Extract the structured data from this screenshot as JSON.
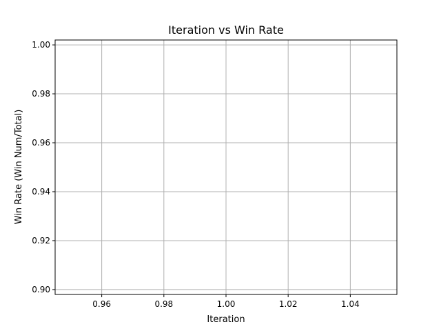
{
  "chart_data": {
    "type": "line",
    "title": "Iteration vs Win Rate",
    "xlabel": "Iteration",
    "ylabel": "Win Rate (Win Num/Total)",
    "xlim": [
      0.945,
      1.055
    ],
    "ylim": [
      0.898,
      1.002
    ],
    "xticks": [
      0.96,
      0.98,
      1.0,
      1.02,
      1.04
    ],
    "xtick_labels": [
      "0.96",
      "0.98",
      "1.00",
      "1.02",
      "1.04"
    ],
    "yticks": [
      0.9,
      0.92,
      0.94,
      0.96,
      0.98,
      1.0
    ],
    "ytick_labels": [
      "0.90",
      "0.92",
      "0.94",
      "0.96",
      "0.98",
      "1.00"
    ],
    "grid": true,
    "series": [
      {
        "x": [],
        "y": []
      }
    ]
  }
}
